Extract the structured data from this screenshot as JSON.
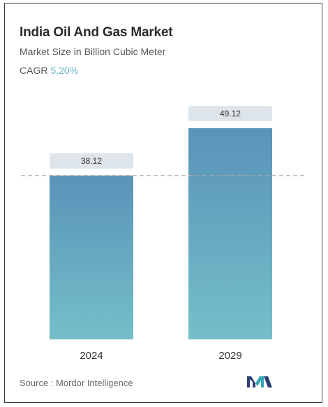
{
  "chart_data": {
    "type": "bar",
    "title": "India Oil And Gas Market",
    "subtitle": "Market Size in Billion Cubic Meter",
    "cagr_label": "CAGR",
    "cagr_value": "5.20%",
    "categories": [
      "2024",
      "2029"
    ],
    "values": [
      38.12,
      49.12
    ],
    "value_labels": [
      "38.12",
      "49.12"
    ],
    "ylim": [
      0,
      49.12
    ],
    "reference_line": 38.12,
    "grid": false,
    "legend": "none",
    "bar_color_top": "#5a93b8",
    "bar_color_bottom": "#74bfc9",
    "label_bg_color": "#dde5ea",
    "reference_line_color": "#a8a8a8"
  },
  "source": "Source : Mordor Intelligence",
  "logo": {
    "icon": "mordor-intelligence-logo-icon",
    "colors": [
      "#2e3f73",
      "#37a6b8"
    ]
  }
}
